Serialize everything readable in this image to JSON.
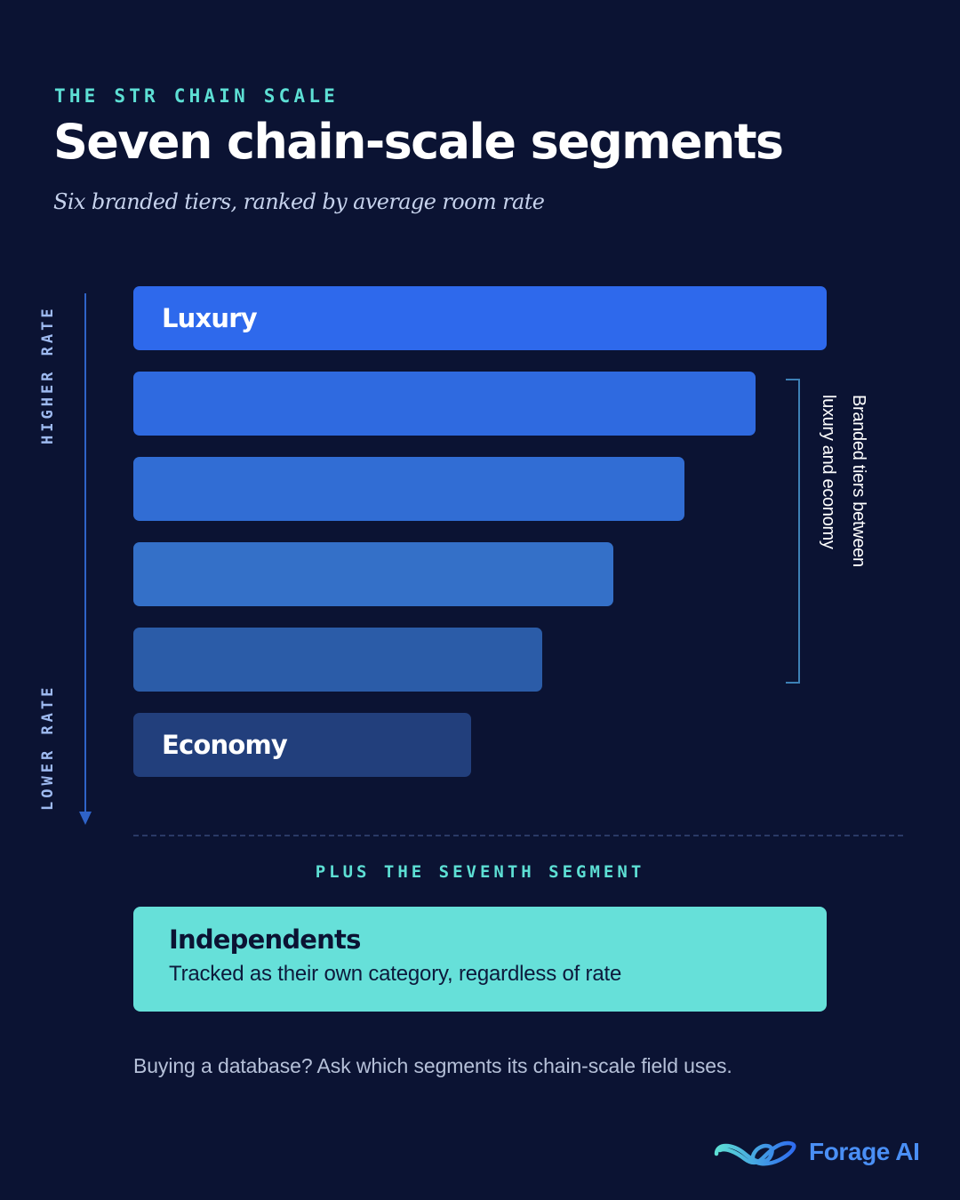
{
  "header": {
    "eyebrow": "THE STR CHAIN SCALE",
    "title": "Seven chain-scale segments",
    "subtitle": "Six branded tiers, ranked by average room rate"
  },
  "axis": {
    "high_label": "HIGHER RATE",
    "low_label": "LOWER RATE"
  },
  "tiers": [
    {
      "label": "Luxury",
      "rank": 1,
      "color": "#2e69ec"
    },
    {
      "label": "",
      "rank": 2,
      "color": "#2f6ae0"
    },
    {
      "label": "",
      "rank": 3,
      "color": "#316dd4"
    },
    {
      "label": "",
      "rank": 4,
      "color": "#3470c8"
    },
    {
      "label": "",
      "rank": 5,
      "color": "#2b5ca8"
    },
    {
      "label": "Economy",
      "rank": 6,
      "color": "#223f7c"
    }
  ],
  "bracket": {
    "text_line1": "Branded tiers between",
    "text_line2": "luxury and economy"
  },
  "seventh": {
    "eyebrow": "PLUS THE SEVENTH SEGMENT",
    "title": "Independents",
    "description": "Tracked as their own category, regardless of rate",
    "color": "#66e0d9"
  },
  "footnote": "Buying a database? Ask which segments its chain-scale field uses.",
  "brand": {
    "name": "Forage AI",
    "icon": "infinity-logo-icon",
    "color": "#4a8ff5"
  }
}
